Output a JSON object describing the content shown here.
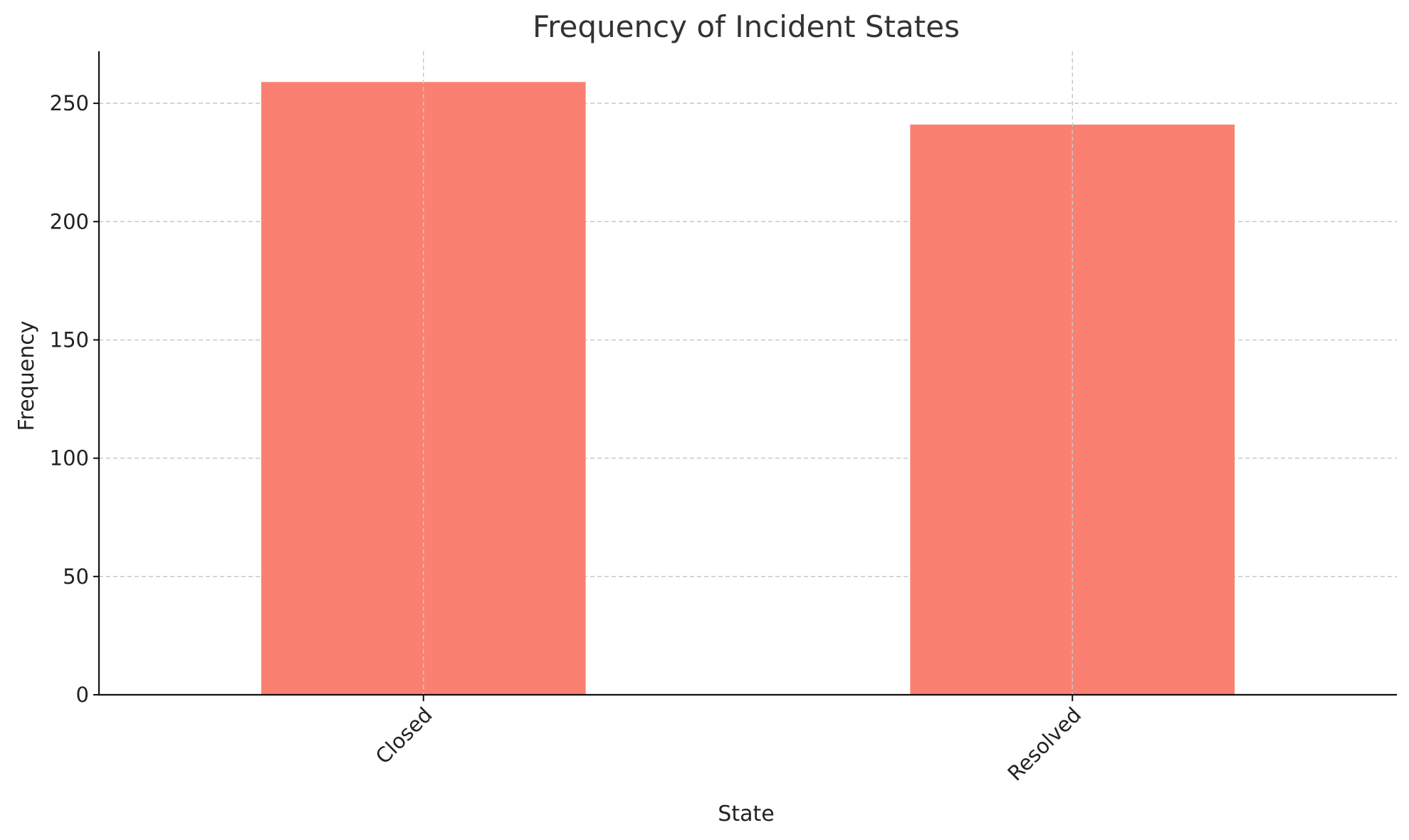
{
  "chart_data": {
    "type": "bar",
    "title": "Frequency of Incident States",
    "xlabel": "State",
    "ylabel": "Frequency",
    "categories": [
      "Closed",
      "Resolved"
    ],
    "values": [
      259,
      241
    ],
    "ylim": [
      0,
      272
    ],
    "yticks": [
      0,
      50,
      100,
      150,
      200,
      250
    ],
    "grid": true,
    "bar_color": "#fa8072"
  }
}
